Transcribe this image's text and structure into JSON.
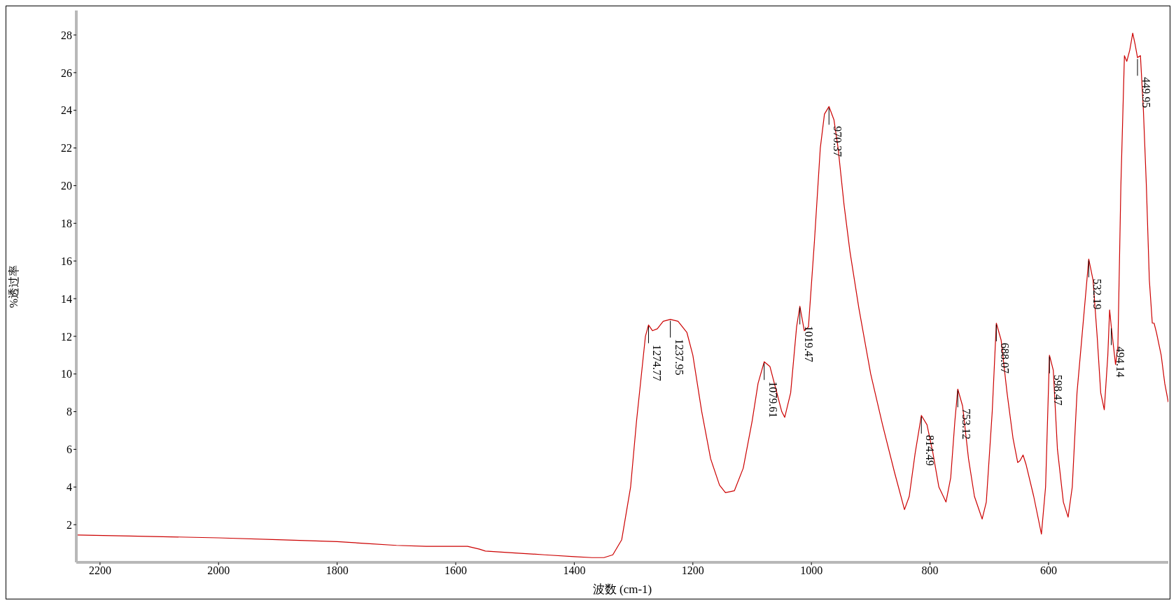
{
  "chart_data": {
    "type": "line",
    "xlabel": "波数 (cm-1)",
    "ylabel": "%透过率",
    "xlim": [
      2240,
      398
    ],
    "ylim": [
      0,
      29.3
    ],
    "xticks": [
      2200,
      2000,
      1800,
      1600,
      1400,
      1200,
      1000,
      800,
      600
    ],
    "yticks": [
      2,
      4,
      6,
      8,
      10,
      12,
      14,
      16,
      18,
      20,
      22,
      24,
      26,
      28
    ],
    "grid": false,
    "legend": false,
    "marker": "none",
    "line_style": "solid",
    "series": [
      {
        "color": "#cc0000",
        "x": [
          2240,
          2150,
          2000,
          1900,
          1800,
          1750,
          1700,
          1650,
          1600,
          1580,
          1560,
          1550,
          1500,
          1450,
          1400,
          1370,
          1350,
          1335,
          1320,
          1305,
          1295,
          1285,
          1280,
          1274.77,
          1268,
          1260,
          1250,
          1237.95,
          1225,
          1210,
          1200,
          1185,
          1170,
          1155,
          1145,
          1130,
          1115,
          1100,
          1090,
          1079.61,
          1070,
          1060,
          1050,
          1045,
          1035,
          1025,
          1019.47,
          1012,
          1005,
          995,
          985,
          978,
          970.37,
          962,
          955,
          945,
          935,
          920,
          900,
          880,
          860,
          843,
          835,
          825,
          814.49,
          805,
          795,
          785,
          773,
          765,
          758,
          753.12,
          745,
          735,
          725,
          712,
          705,
          695,
          688.07,
          680,
          670,
          660,
          652,
          648,
          643,
          638,
          625,
          612,
          605,
          598.47,
          592,
          585,
          575,
          567,
          560,
          552,
          545,
          532.19,
          525,
          518,
          512,
          506,
          500,
          497,
          494.14,
          487,
          483,
          478,
          472,
          468,
          463,
          458,
          454,
          449.95,
          445,
          440,
          435,
          430,
          425,
          422,
          418,
          410,
          404,
          398
        ],
        "values": [
          1.45,
          1.4,
          1.3,
          1.2,
          1.1,
          1.0,
          0.9,
          0.85,
          0.85,
          0.85,
          0.7,
          0.6,
          0.5,
          0.4,
          0.3,
          0.25,
          0.25,
          0.4,
          1.2,
          4.0,
          7.5,
          10.5,
          12.0,
          12.6,
          12.3,
          12.4,
          12.8,
          12.9,
          12.8,
          12.2,
          11.0,
          8.0,
          5.5,
          4.1,
          3.7,
          3.8,
          5.0,
          7.5,
          9.5,
          10.65,
          10.4,
          9.2,
          8.0,
          7.7,
          9.0,
          12.5,
          13.6,
          12.3,
          12.5,
          17,
          22,
          23.8,
          24.2,
          23.5,
          22,
          19,
          16.5,
          13.5,
          10,
          7.3,
          4.8,
          2.8,
          3.5,
          5.8,
          7.8,
          7.3,
          5.8,
          4.0,
          3.2,
          4.5,
          7.5,
          9.2,
          8.3,
          5.5,
          3.5,
          2.3,
          3.2,
          8.0,
          12.7,
          11.8,
          9.0,
          6.6,
          5.3,
          5.4,
          5.7,
          5.2,
          3.5,
          1.5,
          4.0,
          11.0,
          10.2,
          6.0,
          3.2,
          2.4,
          4.0,
          9.0,
          11.5,
          16.1,
          15.0,
          12.0,
          9.0,
          8.1,
          11.0,
          13.4,
          12.5,
          10.5,
          11.5,
          20,
          26.9,
          26.6,
          27.2,
          28.1,
          27.5,
          26.8,
          26.9,
          24,
          20,
          15,
          12.7,
          12.7,
          12.2,
          11.0,
          9.5,
          8.5
        ]
      }
    ],
    "annotations": [
      {
        "text": "1274.77",
        "x": 1274.77,
        "y": 12.6
      },
      {
        "text": "1237.95",
        "x": 1237.95,
        "y": 12.9
      },
      {
        "text": "1079.61",
        "x": 1079.61,
        "y": 10.65
      },
      {
        "text": "1019.47",
        "x": 1019.47,
        "y": 13.6
      },
      {
        "text": "970.37",
        "x": 970.37,
        "y": 24.2
      },
      {
        "text": "814.49",
        "x": 814.49,
        "y": 7.8
      },
      {
        "text": "753.12",
        "x": 753.12,
        "y": 9.2
      },
      {
        "text": "688.07",
        "x": 688.07,
        "y": 12.7
      },
      {
        "text": "598.47",
        "x": 598.47,
        "y": 11.0
      },
      {
        "text": "532.19",
        "x": 532.19,
        "y": 16.1
      },
      {
        "text": "494.14",
        "x": 494.14,
        "y": 12.5
      },
      {
        "text": "449.95",
        "x": 449.95,
        "y": 26.8
      }
    ]
  }
}
